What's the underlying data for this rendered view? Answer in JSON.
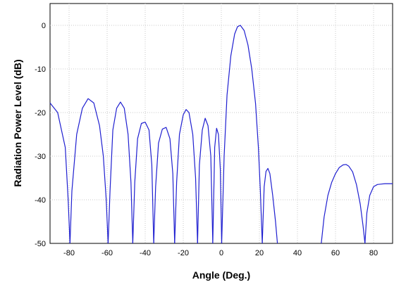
{
  "chart_data": {
    "type": "line",
    "title": "",
    "xlabel": "Angle (Deg.)",
    "ylabel": "Radiation Power Level (dB)",
    "xlim": [
      -90,
      90
    ],
    "ylim": [
      -50,
      5
    ],
    "x_ticks": [
      -80,
      -60,
      -40,
      -20,
      0,
      20,
      40,
      60,
      80
    ],
    "y_ticks": [
      0,
      -10,
      -20,
      -30,
      -40,
      -50
    ],
    "x_tick_labels": [
      "-80",
      "-60",
      "-40",
      "-20",
      "0",
      "20",
      "40",
      "60",
      "80"
    ],
    "y_tick_labels": [
      "0",
      "-10",
      "-20",
      "-30",
      "-40",
      "-50"
    ],
    "grid": true,
    "line_color": "#1f1fd0",
    "series": [
      {
        "lobes": [
          {
            "x": [
              -90,
              -86,
              -82,
              -80.5,
              -79.5
            ],
            "y": [
              -17.8,
              -20,
              -28,
              -40,
              -50
            ]
          },
          {
            "x": [
              -79.5,
              -78.5,
              -76,
              -73,
              -70,
              -67,
              -64,
              -62,
              -60.5,
              -59.5
            ],
            "y": [
              -50,
              -38,
              -25,
              -19,
              -16.8,
              -17.8,
              -23,
              -30,
              -40,
              -50
            ]
          },
          {
            "x": [
              -59.5,
              -58.5,
              -57,
              -55,
              -53,
              -51,
              -49,
              -47.5,
              -46.5
            ],
            "y": [
              -50,
              -38,
              -24,
              -19,
              -17.6,
              -19,
              -25,
              -36,
              -50
            ]
          },
          {
            "x": [
              -46.5,
              -45.5,
              -44,
              -42,
              -40,
              -38,
              -36.5,
              -35.5
            ],
            "y": [
              -50,
              -36,
              -26,
              -22.5,
              -22.2,
              -24,
              -32,
              -50
            ]
          },
          {
            "x": [
              -35.5,
              -34.5,
              -33,
              -31,
              -29,
              -27,
              -25.5,
              -24.5
            ],
            "y": [
              -50,
              -37,
              -27,
              -23.8,
              -23.4,
              -26,
              -34,
              -50
            ]
          },
          {
            "x": [
              -24.5,
              -23.5,
              -22,
              -20,
              -18.5,
              -17,
              -15,
              -13.5,
              -12.5
            ],
            "y": [
              -50,
              -36,
              -25,
              -20.5,
              -19.3,
              -20,
              -25,
              -35,
              -50
            ]
          },
          {
            "x": [
              -12.5,
              -11.5,
              -10,
              -8.5,
              -7,
              -5.5,
              -4.5
            ],
            "y": [
              -50,
              -32,
              -24,
              -21.3,
              -23,
              -30,
              -50
            ]
          },
          {
            "x": [
              -4.5,
              -3.5,
              -2.5,
              -1.5,
              -0.5,
              0.2
            ],
            "y": [
              -50,
              -28,
              -23.6,
              -25,
              -33,
              -50
            ]
          },
          {
            "x": [
              0.2,
              1.5,
              3,
              5,
              7,
              8.5,
              10,
              12,
              14,
              16,
              18,
              19.5,
              20.5,
              21.5
            ],
            "y": [
              -50,
              -30,
              -16,
              -7,
              -2,
              -0.3,
              0,
              -1.2,
              -4.5,
              -10,
              -18,
              -28,
              -38,
              -50
            ]
          },
          {
            "x": [
              21.5,
              22.5,
              23.5,
              24.5,
              25.5,
              27,
              28.5,
              29.5
            ],
            "y": [
              -50,
              -37,
              -33.5,
              -32.8,
              -34,
              -39,
              -45,
              -50
            ]
          },
          {
            "x": [
              52.5,
              54,
              56,
              58,
              60,
              62,
              64,
              65.5,
              67,
              69,
              71,
              73,
              74.5,
              75.5
            ],
            "y": [
              -50,
              -44,
              -39,
              -36,
              -34,
              -32.6,
              -32,
              -31.9,
              -32.3,
              -33.6,
              -36.5,
              -41,
              -46,
              -50
            ]
          },
          {
            "x": [
              75.5,
              76.5,
              78,
              80,
              82,
              84,
              86,
              88,
              90
            ],
            "y": [
              -50,
              -43,
              -39,
              -37,
              -36.5,
              -36.4,
              -36.3,
              -36.3,
              -36.3
            ]
          }
        ]
      }
    ]
  }
}
